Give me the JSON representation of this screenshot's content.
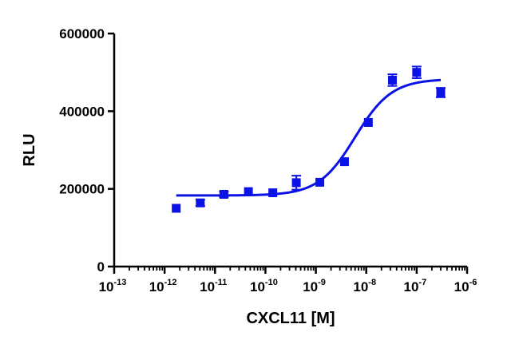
{
  "chart_data": {
    "type": "scatter",
    "title": "",
    "xlabel": "CXCL11 [M]",
    "ylabel": "RLU",
    "x_scale": "log",
    "xlim": [
      1e-13,
      1e-06
    ],
    "ylim": [
      0,
      600000
    ],
    "x_ticks": [
      {
        "base": "10",
        "exp": "-13"
      },
      {
        "base": "10",
        "exp": "-12"
      },
      {
        "base": "10",
        "exp": "-11"
      },
      {
        "base": "10",
        "exp": "-10"
      },
      {
        "base": "10",
        "exp": "-9"
      },
      {
        "base": "10",
        "exp": "-8"
      },
      {
        "base": "10",
        "exp": "-7"
      },
      {
        "base": "10",
        "exp": "-6"
      }
    ],
    "y_ticks": [
      "0",
      "200000",
      "400000",
      "600000"
    ],
    "y_tick_values": [
      0,
      200000,
      400000,
      600000
    ],
    "grid": false,
    "legend": "none",
    "marker_color": "#0b12e6",
    "curve_color": "#0b12e6",
    "points": [
      {
        "x": 1.7e-12,
        "y": 150000,
        "err": 0
      },
      {
        "x": 5.1e-12,
        "y": 164000,
        "err": 8000
      },
      {
        "x": 1.5e-11,
        "y": 186000,
        "err": 7000
      },
      {
        "x": 4.6e-11,
        "y": 193000,
        "err": 0
      },
      {
        "x": 1.4e-10,
        "y": 190000,
        "err": 0
      },
      {
        "x": 4.1e-10,
        "y": 216000,
        "err": 18000
      },
      {
        "x": 1.2e-09,
        "y": 217000,
        "err": 0
      },
      {
        "x": 3.7e-09,
        "y": 270000,
        "err": 0
      },
      {
        "x": 1.1e-08,
        "y": 371000,
        "err": 0
      },
      {
        "x": 3.3e-08,
        "y": 480000,
        "err": 15000
      },
      {
        "x": 1e-07,
        "y": 500000,
        "err": 15000
      },
      {
        "x": 3e-07,
        "y": 448000,
        "err": 12000
      }
    ],
    "fit": {
      "model": "4PL",
      "bottom": 183000,
      "top": 483000,
      "ec50": 6e-09,
      "hill": 1.2,
      "x_start": 1.7e-12,
      "x_end": 3e-07
    }
  }
}
